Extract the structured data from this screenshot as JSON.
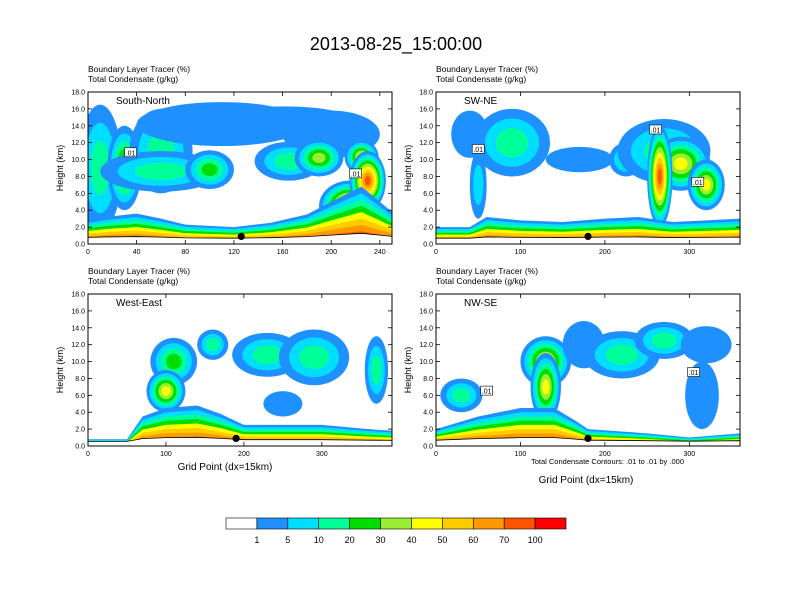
{
  "title": "2013-08-25_15:00:00",
  "panel_header": {
    "line1": "Boundary Layer Tracer   (%)",
    "line2": "Total Condensate   (g/kg)"
  },
  "y_axis_label": "Height (km)",
  "x_axis_label": "Grid Point (dx=15km)",
  "contour_note": "Total Condensate Contours: .01 to .01 by .000",
  "contour_label": ".01",
  "colors": {
    "terrain": "#000000",
    "levels": [
      "#ffffff",
      "#1e90ff",
      "#00ddff",
      "#00ff99",
      "#00dd00",
      "#99ee33",
      "#ffff00",
      "#ffcc00",
      "#ff9900",
      "#ff5500",
      "#ff0000"
    ]
  },
  "colorbar": {
    "labels": [
      "1",
      "5",
      "10",
      "20",
      "30",
      "40",
      "50",
      "60",
      "70",
      "100"
    ]
  },
  "chart_data": [
    {
      "type": "heatmap",
      "label": "South-North",
      "title": "Boundary Layer Tracer (%) / Total Condensate (g/kg)",
      "ylabel": "Height (km)",
      "xlabel": "",
      "xlim": [
        0,
        250
      ],
      "ylim": [
        0,
        18
      ],
      "x_ticks": [
        "0",
        "40",
        "80",
        "120",
        "160",
        "200",
        "240"
      ],
      "y_ticks": [
        "0.0",
        "2.0",
        "4.0",
        "6.0",
        "8.0",
        "10.0",
        "12.0",
        "14.0",
        "16.0",
        "18.0"
      ],
      "marker_x": 126,
      "contour_label_positions": [
        [
          35,
          10.8
        ],
        [
          220,
          8.3
        ]
      ],
      "blobs": [
        {
          "x": 10,
          "y": 9,
          "rx": 18,
          "ry": 7.5,
          "lv": 3
        },
        {
          "x": 30,
          "y": 9,
          "rx": 14,
          "ry": 5,
          "lv": 5
        },
        {
          "x": 60,
          "y": 11,
          "rx": 26,
          "ry": 5,
          "lv": 3
        },
        {
          "x": 110,
          "y": 14.2,
          "rx": 70,
          "ry": 2.6,
          "lv": 1
        },
        {
          "x": 160,
          "y": 14.5,
          "rx": 60,
          "ry": 1.8,
          "lv": 1
        },
        {
          "x": 200,
          "y": 13,
          "rx": 40,
          "ry": 2.8,
          "lv": 1
        },
        {
          "x": 60,
          "y": 8.6,
          "rx": 50,
          "ry": 2.4,
          "lv": 3
        },
        {
          "x": 100,
          "y": 8.8,
          "rx": 20,
          "ry": 2.3,
          "lv": 4
        },
        {
          "x": 165,
          "y": 9.8,
          "rx": 28,
          "ry": 2.3,
          "lv": 3
        },
        {
          "x": 190,
          "y": 10.2,
          "rx": 20,
          "ry": 2.2,
          "lv": 5
        },
        {
          "x": 225,
          "y": 10.3,
          "rx": 14,
          "ry": 2,
          "lv": 6
        },
        {
          "x": 215,
          "y": 4.5,
          "rx": 25,
          "ry": 3,
          "lv": 8
        },
        {
          "x": 230,
          "y": 7.5,
          "rx": 15,
          "ry": 3.5,
          "lv": 9
        }
      ],
      "surface": [
        [
          0,
          2.8
        ],
        [
          15,
          3.2
        ],
        [
          40,
          3.6
        ],
        [
          60,
          3.0
        ],
        [
          80,
          2.3
        ],
        [
          120,
          2.0
        ],
        [
          150,
          2.5
        ],
        [
          180,
          3.5
        ],
        [
          200,
          5.0
        ],
        [
          225,
          6.8
        ],
        [
          250,
          3.8
        ]
      ]
    },
    {
      "type": "heatmap",
      "label": "SW-NE",
      "title": "Boundary Layer Tracer (%) / Total Condensate (g/kg)",
      "ylabel": "Height (km)",
      "xlabel": "",
      "xlim": [
        0,
        360
      ],
      "ylim": [
        0,
        18
      ],
      "x_ticks": [
        "0",
        "100",
        "200",
        "300"
      ],
      "y_ticks": [
        "0.0",
        "2.0",
        "4.0",
        "6.0",
        "8.0",
        "10.0",
        "12.0",
        "14.0",
        "16.0",
        "18.0"
      ],
      "marker_x": 180,
      "contour_label_positions": [
        [
          50,
          11.2
        ],
        [
          260,
          13.5
        ],
        [
          310,
          7.3
        ]
      ],
      "blobs": [
        {
          "x": 40,
          "y": 13,
          "rx": 22,
          "ry": 2.8,
          "lv": 1
        },
        {
          "x": 90,
          "y": 12,
          "rx": 45,
          "ry": 4,
          "lv": 3
        },
        {
          "x": 170,
          "y": 10,
          "rx": 40,
          "ry": 1.5,
          "lv": 1
        },
        {
          "x": 225,
          "y": 10,
          "rx": 20,
          "ry": 2,
          "lv": 3
        },
        {
          "x": 270,
          "y": 11,
          "rx": 55,
          "ry": 3.8,
          "lv": 3
        },
        {
          "x": 290,
          "y": 9.5,
          "rx": 35,
          "ry": 3.2,
          "lv": 6
        },
        {
          "x": 265,
          "y": 8,
          "rx": 15,
          "ry": 6,
          "lv": 9
        },
        {
          "x": 320,
          "y": 7,
          "rx": 22,
          "ry": 3,
          "lv": 6
        },
        {
          "x": 50,
          "y": 7,
          "rx": 10,
          "ry": 4,
          "lv": 2
        }
      ],
      "surface": [
        [
          0,
          2.0
        ],
        [
          40,
          2.0
        ],
        [
          60,
          3.2
        ],
        [
          100,
          2.8
        ],
        [
          150,
          2.6
        ],
        [
          200,
          3.0
        ],
        [
          240,
          3.2
        ],
        [
          280,
          2.6
        ],
        [
          320,
          2.8
        ],
        [
          360,
          3.0
        ]
      ]
    },
    {
      "type": "heatmap",
      "label": "West-East",
      "title": "Boundary Layer Tracer (%) / Total Condensate (g/kg)",
      "ylabel": "Height (km)",
      "xlabel": "Grid Point (dx=15km)",
      "xlim": [
        0,
        390
      ],
      "ylim": [
        0,
        18
      ],
      "x_ticks": [
        "0",
        "100",
        "200",
        "300"
      ],
      "y_ticks": [
        "0.0",
        "2.0",
        "4.0",
        "6.0",
        "8.0",
        "10.0",
        "12.0",
        "14.0",
        "16.0",
        "18.0"
      ],
      "marker_x": 190,
      "contour_label_positions": [],
      "blobs": [
        {
          "x": 110,
          "y": 10,
          "rx": 30,
          "ry": 2.8,
          "lv": 4
        },
        {
          "x": 160,
          "y": 12,
          "rx": 20,
          "ry": 1.8,
          "lv": 3
        },
        {
          "x": 230,
          "y": 10.8,
          "rx": 45,
          "ry": 2.6,
          "lv": 3
        },
        {
          "x": 290,
          "y": 10.5,
          "rx": 45,
          "ry": 3.3,
          "lv": 3
        },
        {
          "x": 370,
          "y": 9,
          "rx": 15,
          "ry": 4,
          "lv": 3
        },
        {
          "x": 100,
          "y": 6.5,
          "rx": 25,
          "ry": 2.5,
          "lv": 6
        },
        {
          "x": 250,
          "y": 5,
          "rx": 25,
          "ry": 1.5,
          "lv": 1
        }
      ],
      "surface": [
        [
          0,
          0.8
        ],
        [
          50,
          0.8
        ],
        [
          70,
          3.5
        ],
        [
          100,
          4.5
        ],
        [
          140,
          4.8
        ],
        [
          170,
          3.8
        ],
        [
          200,
          2.5
        ],
        [
          300,
          2.5
        ],
        [
          360,
          2.0
        ],
        [
          390,
          1.8
        ]
      ]
    },
    {
      "type": "heatmap",
      "label": "NW-SE",
      "title": "Boundary Layer Tracer (%) / Total Condensate (g/kg)",
      "ylabel": "Height (km)",
      "xlabel": "Grid Point (dx=15km)",
      "xlim": [
        0,
        360
      ],
      "ylim": [
        0,
        18
      ],
      "x_ticks": [
        "0",
        "100",
        "200",
        "300"
      ],
      "y_ticks": [
        "0.0",
        "2.0",
        "4.0",
        "6.0",
        "8.0",
        "10.0",
        "12.0",
        "14.0",
        "16.0",
        "18.0"
      ],
      "marker_x": 180,
      "contour_label_positions": [
        [
          60,
          6.5
        ],
        [
          305,
          8.7
        ]
      ],
      "blobs": [
        {
          "x": 30,
          "y": 6,
          "rx": 25,
          "ry": 2,
          "lv": 3
        },
        {
          "x": 130,
          "y": 10,
          "rx": 30,
          "ry": 3,
          "lv": 6
        },
        {
          "x": 175,
          "y": 12,
          "rx": 25,
          "ry": 2.8,
          "lv": 1
        },
        {
          "x": 220,
          "y": 10.8,
          "rx": 45,
          "ry": 2.8,
          "lv": 3
        },
        {
          "x": 270,
          "y": 12.5,
          "rx": 35,
          "ry": 2.2,
          "lv": 3
        },
        {
          "x": 320,
          "y": 12,
          "rx": 30,
          "ry": 2.2,
          "lv": 1
        },
        {
          "x": 315,
          "y": 6,
          "rx": 20,
          "ry": 4,
          "lv": 1
        },
        {
          "x": 130,
          "y": 7,
          "rx": 18,
          "ry": 4,
          "lv": 6
        }
      ],
      "surface": [
        [
          0,
          2.0
        ],
        [
          50,
          3.5
        ],
        [
          100,
          4.5
        ],
        [
          140,
          4.5
        ],
        [
          165,
          3.0
        ],
        [
          180,
          2.0
        ],
        [
          250,
          1.5
        ],
        [
          300,
          1.0
        ],
        [
          360,
          1.5
        ]
      ]
    }
  ]
}
